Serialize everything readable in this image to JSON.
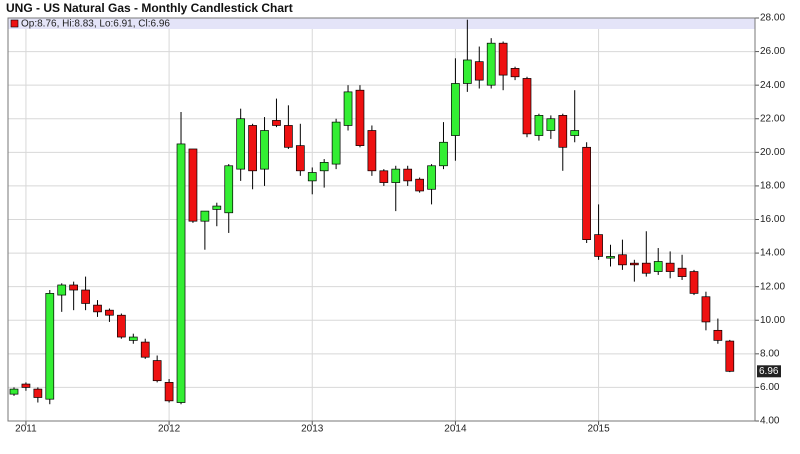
{
  "chart_data": {
    "type": "candlestick",
    "title": "UNG - US Natural Gas - Monthly Candlestick Chart",
    "legend_text": "Op:8.76, Hi:8.83, Lo:6.91, Cl:6.96",
    "up_color": "#33ee33",
    "down_color": "#ee1111",
    "grid": true,
    "categories": [
      null,
      "2011",
      null,
      null,
      null,
      null,
      null,
      null,
      null,
      null,
      null,
      null,
      null,
      "2012",
      null,
      null,
      null,
      null,
      null,
      null,
      null,
      null,
      null,
      null,
      null,
      "2013",
      null,
      null,
      null,
      null,
      null,
      null,
      null,
      null,
      null,
      null,
      null,
      "2014",
      null,
      null,
      null,
      null,
      null,
      null,
      null,
      null,
      null,
      null,
      null,
      "2015",
      null,
      null,
      null,
      null,
      null,
      null,
      null,
      null,
      null,
      null,
      null
    ],
    "open": [
      5.6,
      6.2,
      5.9,
      5.3,
      11.5,
      12.1,
      11.8,
      10.9,
      10.6,
      10.3,
      8.8,
      8.7,
      7.6,
      6.3,
      5.1,
      20.2,
      15.9,
      16.6,
      16.4,
      19.0,
      21.6,
      19.0,
      21.9,
      21.6,
      20.4,
      18.3,
      18.9,
      19.3,
      21.6,
      23.7,
      21.3,
      18.9,
      18.2,
      19.0,
      18.4,
      17.8,
      19.2,
      21.0,
      24.1,
      25.4,
      24.0,
      26.5,
      25.0,
      24.4,
      21.0,
      21.3,
      22.2,
      21.0,
      20.3,
      15.1,
      13.7,
      13.9,
      13.4,
      13.4,
      12.9,
      13.4,
      13.1,
      12.9,
      11.4,
      9.4,
      8.76
    ],
    "high": [
      6.0,
      6.3,
      6.0,
      11.8,
      12.2,
      12.3,
      12.6,
      11.2,
      10.7,
      10.4,
      9.2,
      8.9,
      7.9,
      6.5,
      22.4,
      20.2,
      16.5,
      17.0,
      19.3,
      22.6,
      21.7,
      22.1,
      23.2,
      22.8,
      21.7,
      19.1,
      19.6,
      22.0,
      24.0,
      24.0,
      21.6,
      19.0,
      19.2,
      19.2,
      18.5,
      19.3,
      21.8,
      25.6,
      27.9,
      26.3,
      26.8,
      26.6,
      25.1,
      24.5,
      22.3,
      22.2,
      22.3,
      23.7,
      20.6,
      16.9,
      14.5,
      14.8,
      13.6,
      15.3,
      14.3,
      14.1,
      13.9,
      13.0,
      11.7,
      10.1,
      8.83
    ],
    "low": [
      5.5,
      5.8,
      5.1,
      5.0,
      10.5,
      10.6,
      10.6,
      10.2,
      9.9,
      8.9,
      8.6,
      7.7,
      6.3,
      5.1,
      5.0,
      15.8,
      14.2,
      15.6,
      15.2,
      18.3,
      17.8,
      18.0,
      21.5,
      20.2,
      18.6,
      17.5,
      17.9,
      19.0,
      21.3,
      20.3,
      18.6,
      18.0,
      16.5,
      18.0,
      17.6,
      16.9,
      19.0,
      19.5,
      23.6,
      23.8,
      23.8,
      23.7,
      24.3,
      20.9,
      20.7,
      20.8,
      18.9,
      20.6,
      14.6,
      13.6,
      13.2,
      13.0,
      12.3,
      12.6,
      12.7,
      12.5,
      12.4,
      11.5,
      9.4,
      8.6,
      6.91
    ],
    "close": [
      5.9,
      6.0,
      5.4,
      11.6,
      12.1,
      11.8,
      11.0,
      10.5,
      10.3,
      9.0,
      9.0,
      7.8,
      6.4,
      5.2,
      20.5,
      15.9,
      16.5,
      16.8,
      19.2,
      22.0,
      18.9,
      21.3,
      21.6,
      20.3,
      18.9,
      18.8,
      19.4,
      21.8,
      23.6,
      20.4,
      18.9,
      18.2,
      19.0,
      18.3,
      17.7,
      19.2,
      20.6,
      24.1,
      25.5,
      24.3,
      26.5,
      24.6,
      24.5,
      21.1,
      22.2,
      22.0,
      20.3,
      21.3,
      14.8,
      13.8,
      13.8,
      13.3,
      13.3,
      12.8,
      13.5,
      12.9,
      12.6,
      11.6,
      9.9,
      8.8,
      6.96
    ],
    "ylim": [
      4,
      28
    ],
    "yticks": [
      {
        "value": 4,
        "label": "4.00"
      },
      {
        "value": 6,
        "label": "6.00"
      },
      {
        "value": 8,
        "label": "8.00"
      },
      {
        "value": 10,
        "label": "10.00"
      },
      {
        "value": 12,
        "label": "12.00"
      },
      {
        "value": 14,
        "label": "14.00"
      },
      {
        "value": 16,
        "label": "16.00"
      },
      {
        "value": 18,
        "label": "18.00"
      },
      {
        "value": 20,
        "label": "20.00"
      },
      {
        "value": 22,
        "label": "22.00"
      },
      {
        "value": 24,
        "label": "24.00"
      },
      {
        "value": 26,
        "label": "26.00"
      },
      {
        "value": 28,
        "label": "28.00"
      }
    ]
  }
}
